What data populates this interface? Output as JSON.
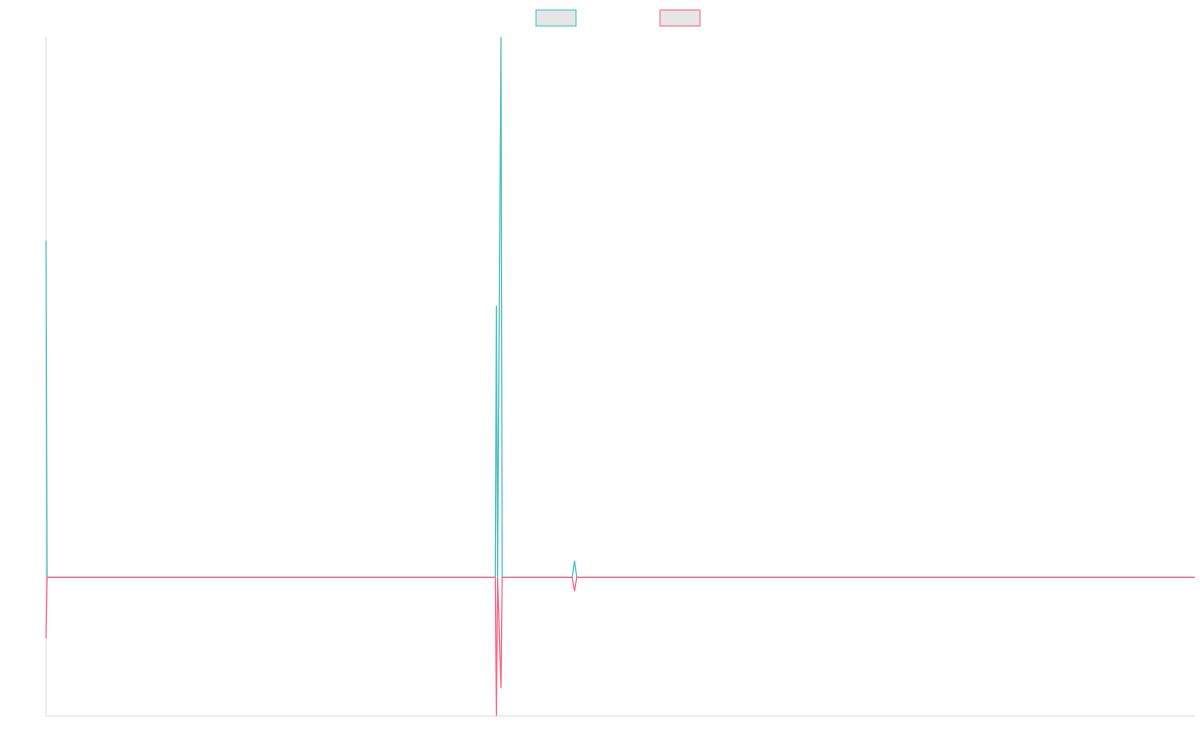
{
  "chart_data": {
    "type": "line",
    "title": "",
    "xlabel": "",
    "ylabel": "",
    "grid": false,
    "legend": "top-center",
    "xlim": [
      0,
      1000
    ],
    "ylim": [
      -100,
      390
    ],
    "series": [
      {
        "color": "#4bc0c0",
        "points": [
          [
            0,
            243
          ],
          [
            1,
            0
          ],
          [
            391,
            0
          ],
          [
            392,
            196
          ],
          [
            393,
            0
          ],
          [
            396,
            390
          ],
          [
            397,
            0
          ],
          [
            458,
            0
          ],
          [
            460,
            12
          ],
          [
            462,
            0
          ],
          [
            1000,
            0
          ]
        ]
      },
      {
        "color": "#ff6384",
        "points": [
          [
            0,
            -44
          ],
          [
            1,
            0
          ],
          [
            391,
            0
          ],
          [
            392,
            -100
          ],
          [
            393,
            0
          ],
          [
            396,
            -80
          ],
          [
            397,
            0
          ],
          [
            458,
            0
          ],
          [
            460,
            -10
          ],
          [
            462,
            0
          ],
          [
            1000,
            0
          ]
        ]
      }
    ]
  }
}
